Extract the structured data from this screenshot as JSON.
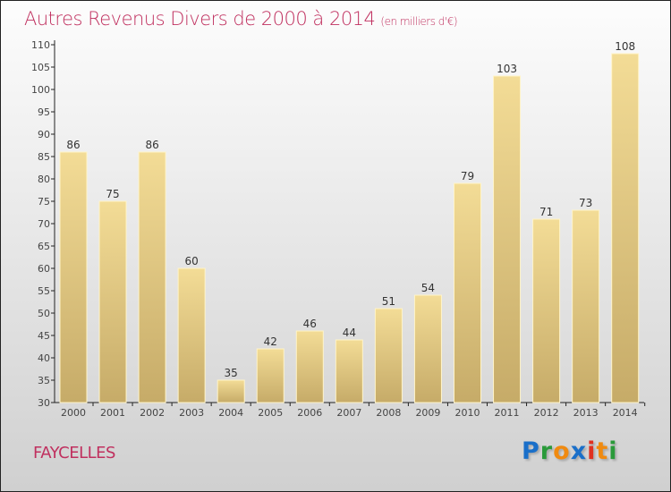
{
  "chart_data": {
    "type": "bar",
    "title": "Autres Revenus Divers de 2000 à 2014",
    "unit": "(en milliers d'€)",
    "categories": [
      "2000",
      "2001",
      "2002",
      "2003",
      "2004",
      "2005",
      "2006",
      "2007",
      "2008",
      "2009",
      "2010",
      "2011",
      "2012",
      "2013",
      "2014"
    ],
    "values": [
      86,
      75,
      86,
      60,
      35,
      42,
      46,
      44,
      51,
      54,
      79,
      103,
      71,
      73,
      108
    ],
    "ylim": [
      30,
      110
    ],
    "yticks": [
      30,
      35,
      40,
      45,
      50,
      55,
      60,
      65,
      70,
      75,
      80,
      85,
      90,
      95,
      100,
      105,
      110
    ],
    "xlabel": "",
    "ylabel": ""
  },
  "town": "FAYCELLES",
  "logo": "Proxiti",
  "colors": {
    "title": "#c0305f",
    "bar_top": "#f3dc96",
    "bar_bottom": "#c6ab68"
  }
}
